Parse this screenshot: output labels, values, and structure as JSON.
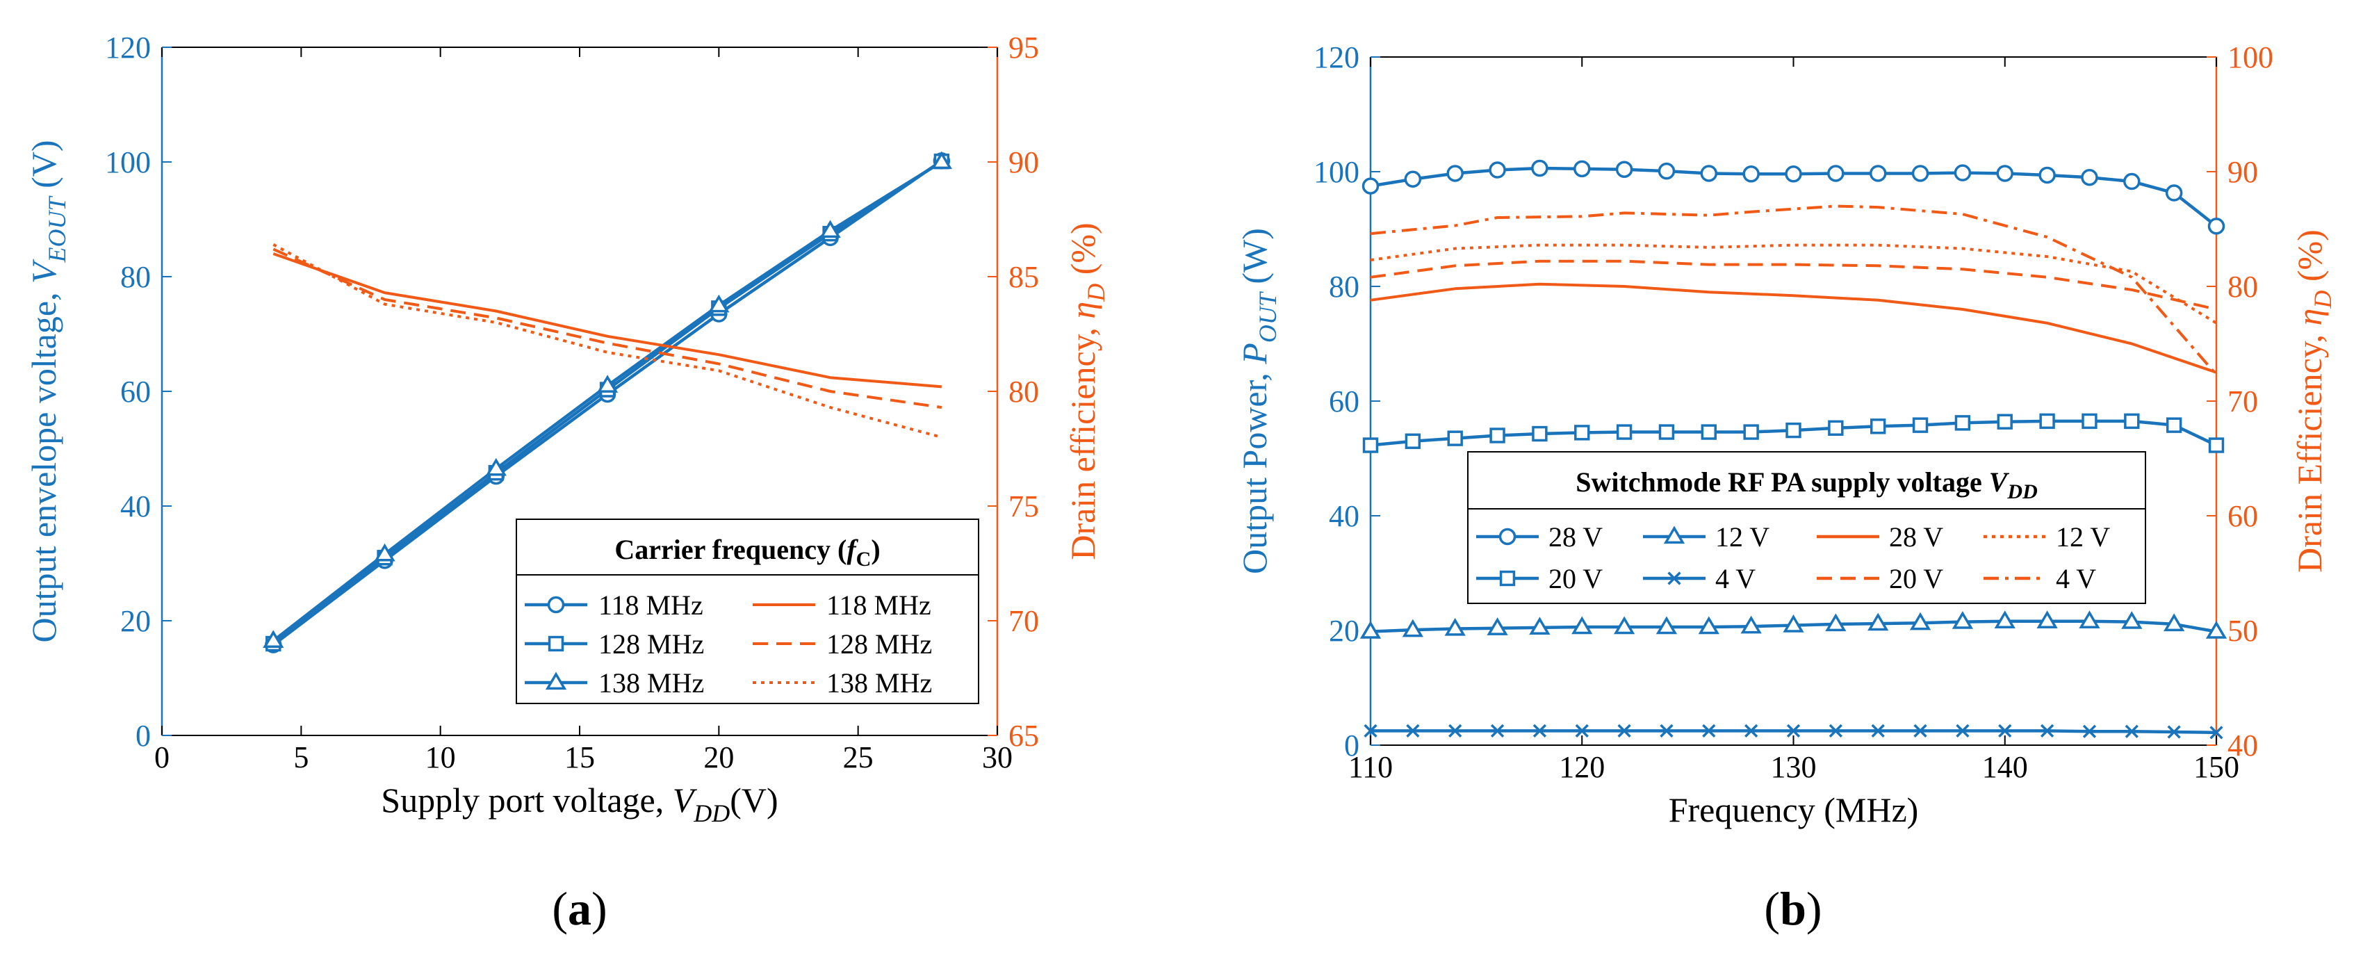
{
  "colors": {
    "blue": "#1a74bb",
    "orange": "#f05a16",
    "black": "#000000"
  },
  "chart_data": [
    {
      "id": "a",
      "type": "line",
      "panel_label": "(a)",
      "xlabel": {
        "main": "Supply port voltage, ",
        "var": "V",
        "sub": "DD",
        "unit": "(V)"
      },
      "ylabel_left": {
        "main": "Output envelope voltage, ",
        "var": "V",
        "sub": "EOUT",
        "unit": " (V)"
      },
      "ylabel_right": {
        "main": "Drain efficiency, ",
        "var": "η",
        "sub": "D",
        "unit": " (%)"
      },
      "xlim": [
        0,
        30
      ],
      "ylim_left": [
        0,
        120
      ],
      "ylim_right": [
        65,
        95
      ],
      "xticks": [
        0,
        5,
        10,
        15,
        20,
        25,
        30
      ],
      "yticks_left": [
        0,
        20,
        40,
        60,
        80,
        100,
        120
      ],
      "yticks_right": [
        65,
        70,
        75,
        80,
        85,
        90,
        95
      ],
      "legend": {
        "title": "Carrier frequency (",
        "title_var": "f",
        "title_sub": "C",
        "title_close": ")",
        "location": "bottom-right"
      },
      "series": [
        {
          "name": "118 MHz",
          "axis": "left",
          "color": "blue",
          "marker": "circle",
          "dash": "solid",
          "x": [
            4,
            8,
            12,
            16,
            20,
            24,
            28
          ],
          "y": [
            15.8,
            30.5,
            45.2,
            59.5,
            73.5,
            86.8,
            100.2
          ]
        },
        {
          "name": "128 MHz",
          "axis": "left",
          "color": "blue",
          "marker": "square",
          "dash": "solid",
          "x": [
            4,
            8,
            12,
            16,
            20,
            24,
            28
          ],
          "y": [
            16.0,
            31.0,
            45.8,
            60.3,
            74.5,
            87.5,
            100.1
          ]
        },
        {
          "name": "138 MHz",
          "axis": "left",
          "color": "blue",
          "marker": "triangle",
          "dash": "solid",
          "x": [
            4,
            8,
            12,
            16,
            20,
            24,
            28
          ],
          "y": [
            16.5,
            31.6,
            46.5,
            61.0,
            75.0,
            88.0,
            100.0
          ]
        },
        {
          "name": "118 MHz",
          "axis": "right",
          "color": "orange",
          "marker": "none",
          "dash": "solid",
          "x": [
            4,
            8,
            12,
            16,
            20,
            24,
            28
          ],
          "y": [
            86.0,
            84.3,
            83.5,
            82.4,
            81.6,
            80.6,
            80.2
          ]
        },
        {
          "name": "128 MHz",
          "axis": "right",
          "color": "orange",
          "marker": "none",
          "dash": "dashed",
          "x": [
            4,
            8,
            12,
            16,
            20,
            24,
            28
          ],
          "y": [
            86.2,
            84.0,
            83.2,
            82.1,
            81.2,
            80.0,
            79.3
          ]
        },
        {
          "name": "138 MHz",
          "axis": "right",
          "color": "orange",
          "marker": "none",
          "dash": "dotted",
          "x": [
            4,
            8,
            12,
            16,
            20,
            24,
            28
          ],
          "y": [
            86.4,
            83.8,
            83.0,
            81.7,
            80.9,
            79.3,
            78.0
          ]
        }
      ]
    },
    {
      "id": "b",
      "type": "line",
      "panel_label": "(b)",
      "xlabel": {
        "main": "Frequency (MHz)",
        "var": "",
        "sub": "",
        "unit": ""
      },
      "ylabel_left": {
        "main": "Output Power,  ",
        "var": "P",
        "sub": "OUT",
        "unit": " (W)"
      },
      "ylabel_right": {
        "main": "Drain Efficiency, ",
        "var": "η",
        "sub": "D",
        "unit": " (%)"
      },
      "xlim": [
        110,
        150
      ],
      "ylim_left": [
        0,
        120
      ],
      "ylim_right": [
        40,
        100
      ],
      "xticks": [
        110,
        120,
        130,
        140,
        150
      ],
      "yticks_left": [
        0,
        20,
        40,
        60,
        80,
        100,
        120
      ],
      "yticks_right": [
        40,
        50,
        60,
        70,
        80,
        90,
        100
      ],
      "legend": {
        "title": "Switchmode RF PA supply voltage  ",
        "title_var": "V",
        "title_sub": "DD",
        "title_close": "",
        "location": "center"
      },
      "series": [
        {
          "name": "28 V",
          "axis": "left",
          "color": "blue",
          "marker": "circle",
          "dash": "solid",
          "x": [
            110,
            112,
            114,
            116,
            118,
            120,
            122,
            124,
            126,
            128,
            130,
            132,
            134,
            136,
            138,
            140,
            142,
            144,
            146,
            148,
            150
          ],
          "y": [
            97.5,
            98.7,
            99.7,
            100.3,
            100.6,
            100.5,
            100.4,
            100.1,
            99.7,
            99.6,
            99.6,
            99.7,
            99.7,
            99.7,
            99.8,
            99.7,
            99.4,
            99.0,
            98.3,
            96.3,
            90.5
          ]
        },
        {
          "name": "20 V",
          "axis": "left",
          "color": "blue",
          "marker": "square",
          "dash": "solid",
          "x": [
            110,
            112,
            114,
            116,
            118,
            120,
            122,
            124,
            126,
            128,
            130,
            132,
            134,
            136,
            138,
            140,
            142,
            144,
            146,
            148,
            150
          ],
          "y": [
            52.3,
            53.0,
            53.5,
            54.0,
            54.3,
            54.5,
            54.6,
            54.6,
            54.6,
            54.6,
            54.9,
            55.3,
            55.6,
            55.8,
            56.2,
            56.4,
            56.5,
            56.5,
            56.5,
            55.8,
            52.3
          ]
        },
        {
          "name": "12 V",
          "axis": "left",
          "color": "blue",
          "marker": "triangle",
          "dash": "solid",
          "x": [
            110,
            112,
            114,
            116,
            118,
            120,
            122,
            124,
            126,
            128,
            130,
            132,
            134,
            136,
            138,
            140,
            142,
            144,
            146,
            148,
            150
          ],
          "y": [
            19.8,
            20.1,
            20.3,
            20.4,
            20.5,
            20.6,
            20.6,
            20.6,
            20.6,
            20.7,
            20.9,
            21.1,
            21.2,
            21.3,
            21.5,
            21.6,
            21.6,
            21.6,
            21.5,
            21.1,
            19.8
          ]
        },
        {
          "name": "4 V",
          "axis": "left",
          "color": "blue",
          "marker": "x",
          "dash": "solid",
          "x": [
            110,
            112,
            114,
            116,
            118,
            120,
            122,
            124,
            126,
            128,
            130,
            132,
            134,
            136,
            138,
            140,
            142,
            144,
            146,
            148,
            150
          ],
          "y": [
            2.5,
            2.5,
            2.5,
            2.5,
            2.5,
            2.5,
            2.5,
            2.5,
            2.5,
            2.5,
            2.5,
            2.5,
            2.5,
            2.5,
            2.5,
            2.5,
            2.5,
            2.4,
            2.4,
            2.3,
            2.2
          ]
        },
        {
          "name": "28 V",
          "axis": "right",
          "color": "orange",
          "marker": "none",
          "dash": "solid",
          "x": [
            110,
            114,
            118,
            122,
            126,
            130,
            134,
            138,
            142,
            146,
            150
          ],
          "y": [
            78.8,
            79.8,
            80.2,
            80.0,
            79.5,
            79.2,
            78.8,
            78.0,
            76.8,
            75.0,
            72.5
          ]
        },
        {
          "name": "20 V",
          "axis": "right",
          "color": "orange",
          "marker": "none",
          "dash": "dashed",
          "x": [
            110,
            114,
            118,
            122,
            126,
            130,
            134,
            138,
            142,
            146,
            150
          ],
          "y": [
            80.8,
            81.8,
            82.2,
            82.2,
            81.9,
            81.9,
            81.8,
            81.5,
            80.8,
            79.7,
            78.0
          ]
        },
        {
          "name": "12 V",
          "axis": "right",
          "color": "orange",
          "marker": "none",
          "dash": "dotted",
          "x": [
            110,
            114,
            118,
            122,
            126,
            130,
            134,
            138,
            142,
            146,
            150
          ],
          "y": [
            82.3,
            83.3,
            83.6,
            83.6,
            83.4,
            83.6,
            83.6,
            83.3,
            82.6,
            81.3,
            76.8
          ]
        },
        {
          "name": "4 V",
          "axis": "right",
          "color": "orange",
          "marker": "none",
          "dash": "dashdot",
          "x": [
            110,
            114,
            116,
            120,
            122,
            126,
            128,
            132,
            134,
            138,
            142,
            146,
            150
          ],
          "y": [
            84.6,
            85.3,
            86.0,
            86.1,
            86.4,
            86.2,
            86.5,
            87.0,
            86.9,
            86.3,
            84.3,
            80.8,
            72.3
          ]
        }
      ]
    }
  ]
}
